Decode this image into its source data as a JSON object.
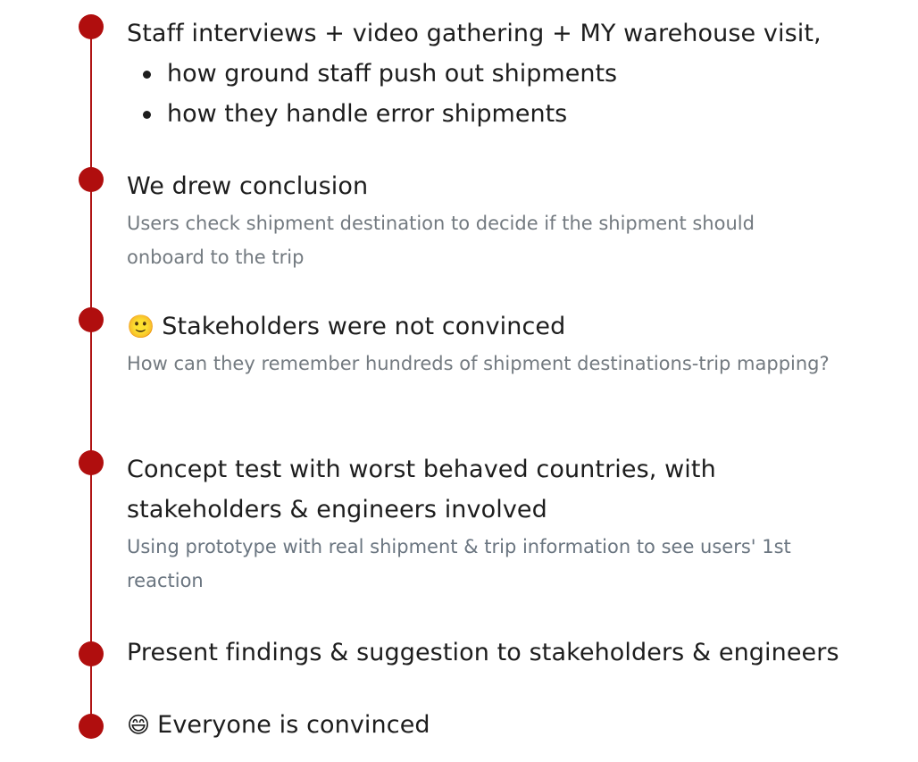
{
  "colors": {
    "accent": "#b00e0e",
    "line": "#b01515",
    "title_text": "#1d1d1d",
    "desc_text": "#737a80"
  },
  "steps": [
    {
      "title": "Staff interviews + video gathering + MY warehouse visit,",
      "bullets": [
        "how ground staff push out shipments",
        "how they handle error shipments"
      ]
    },
    {
      "title": "We drew conclusion",
      "desc": "Users check shipment destination to decide if the shipment should onboard to the trip"
    },
    {
      "emoji": "🙂",
      "title": "Stakeholders were not convinced",
      "desc": "How can they remember hundreds of shipment destinations-trip mapping?"
    },
    {
      "title": "Concept test with worst behaved countries, with stakeholders & engineers involved",
      "desc": "Using prototype with real shipment & trip information to see users' 1st reaction"
    },
    {
      "title": "Present findings & suggestion to stakeholders & engineers"
    },
    {
      "emoji": "😄",
      "title": "Everyone is convinced"
    }
  ]
}
